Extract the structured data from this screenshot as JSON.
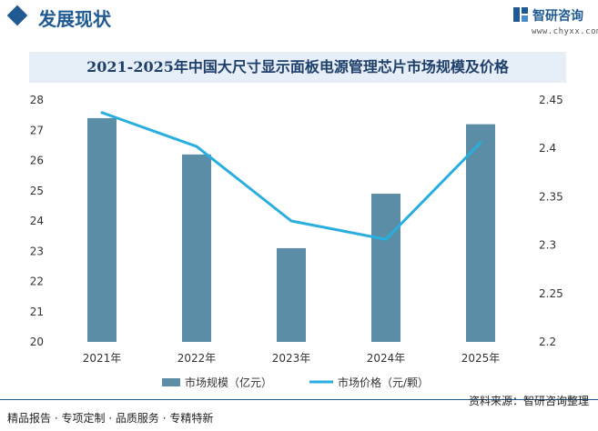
{
  "header": {
    "section_title": "发展现状",
    "brand_name": "智研咨询",
    "brand_url": "www.chyxx.com"
  },
  "footer": {
    "left_text": "精品报告 · 专项定制 · 品质服务 · 专精特新",
    "source_text": "资料来源：智研咨询整理"
  },
  "colors": {
    "bar": "#5b8ea6",
    "line": "#29aee0",
    "brand": "#1f5a93"
  },
  "chart_data": {
    "type": "bar",
    "title": "2021-2025年中国大尺寸显示面板电源管理芯片市场规模及价格",
    "categories": [
      "2021年",
      "2022年",
      "2023年",
      "2024年",
      "2025年"
    ],
    "series": [
      {
        "name": "市场规模（亿元）",
        "type": "bar",
        "axis": "left",
        "values": [
          27.4,
          26.2,
          23.1,
          24.9,
          27.2
        ]
      },
      {
        "name": "市场价格（元/颗）",
        "type": "line",
        "axis": "right",
        "values": [
          2.437,
          2.402,
          2.325,
          2.306,
          2.406
        ]
      }
    ],
    "y_left": {
      "min": 20,
      "max": 28,
      "ticks": [
        "20",
        "21",
        "22",
        "23",
        "24",
        "25",
        "26",
        "27",
        "28"
      ]
    },
    "y_right": {
      "min": 2.2,
      "max": 2.45,
      "ticks": [
        "2.2",
        "2.25",
        "2.3",
        "2.35",
        "2.4",
        "2.45"
      ]
    },
    "grid": false,
    "legend_position": "bottom"
  }
}
